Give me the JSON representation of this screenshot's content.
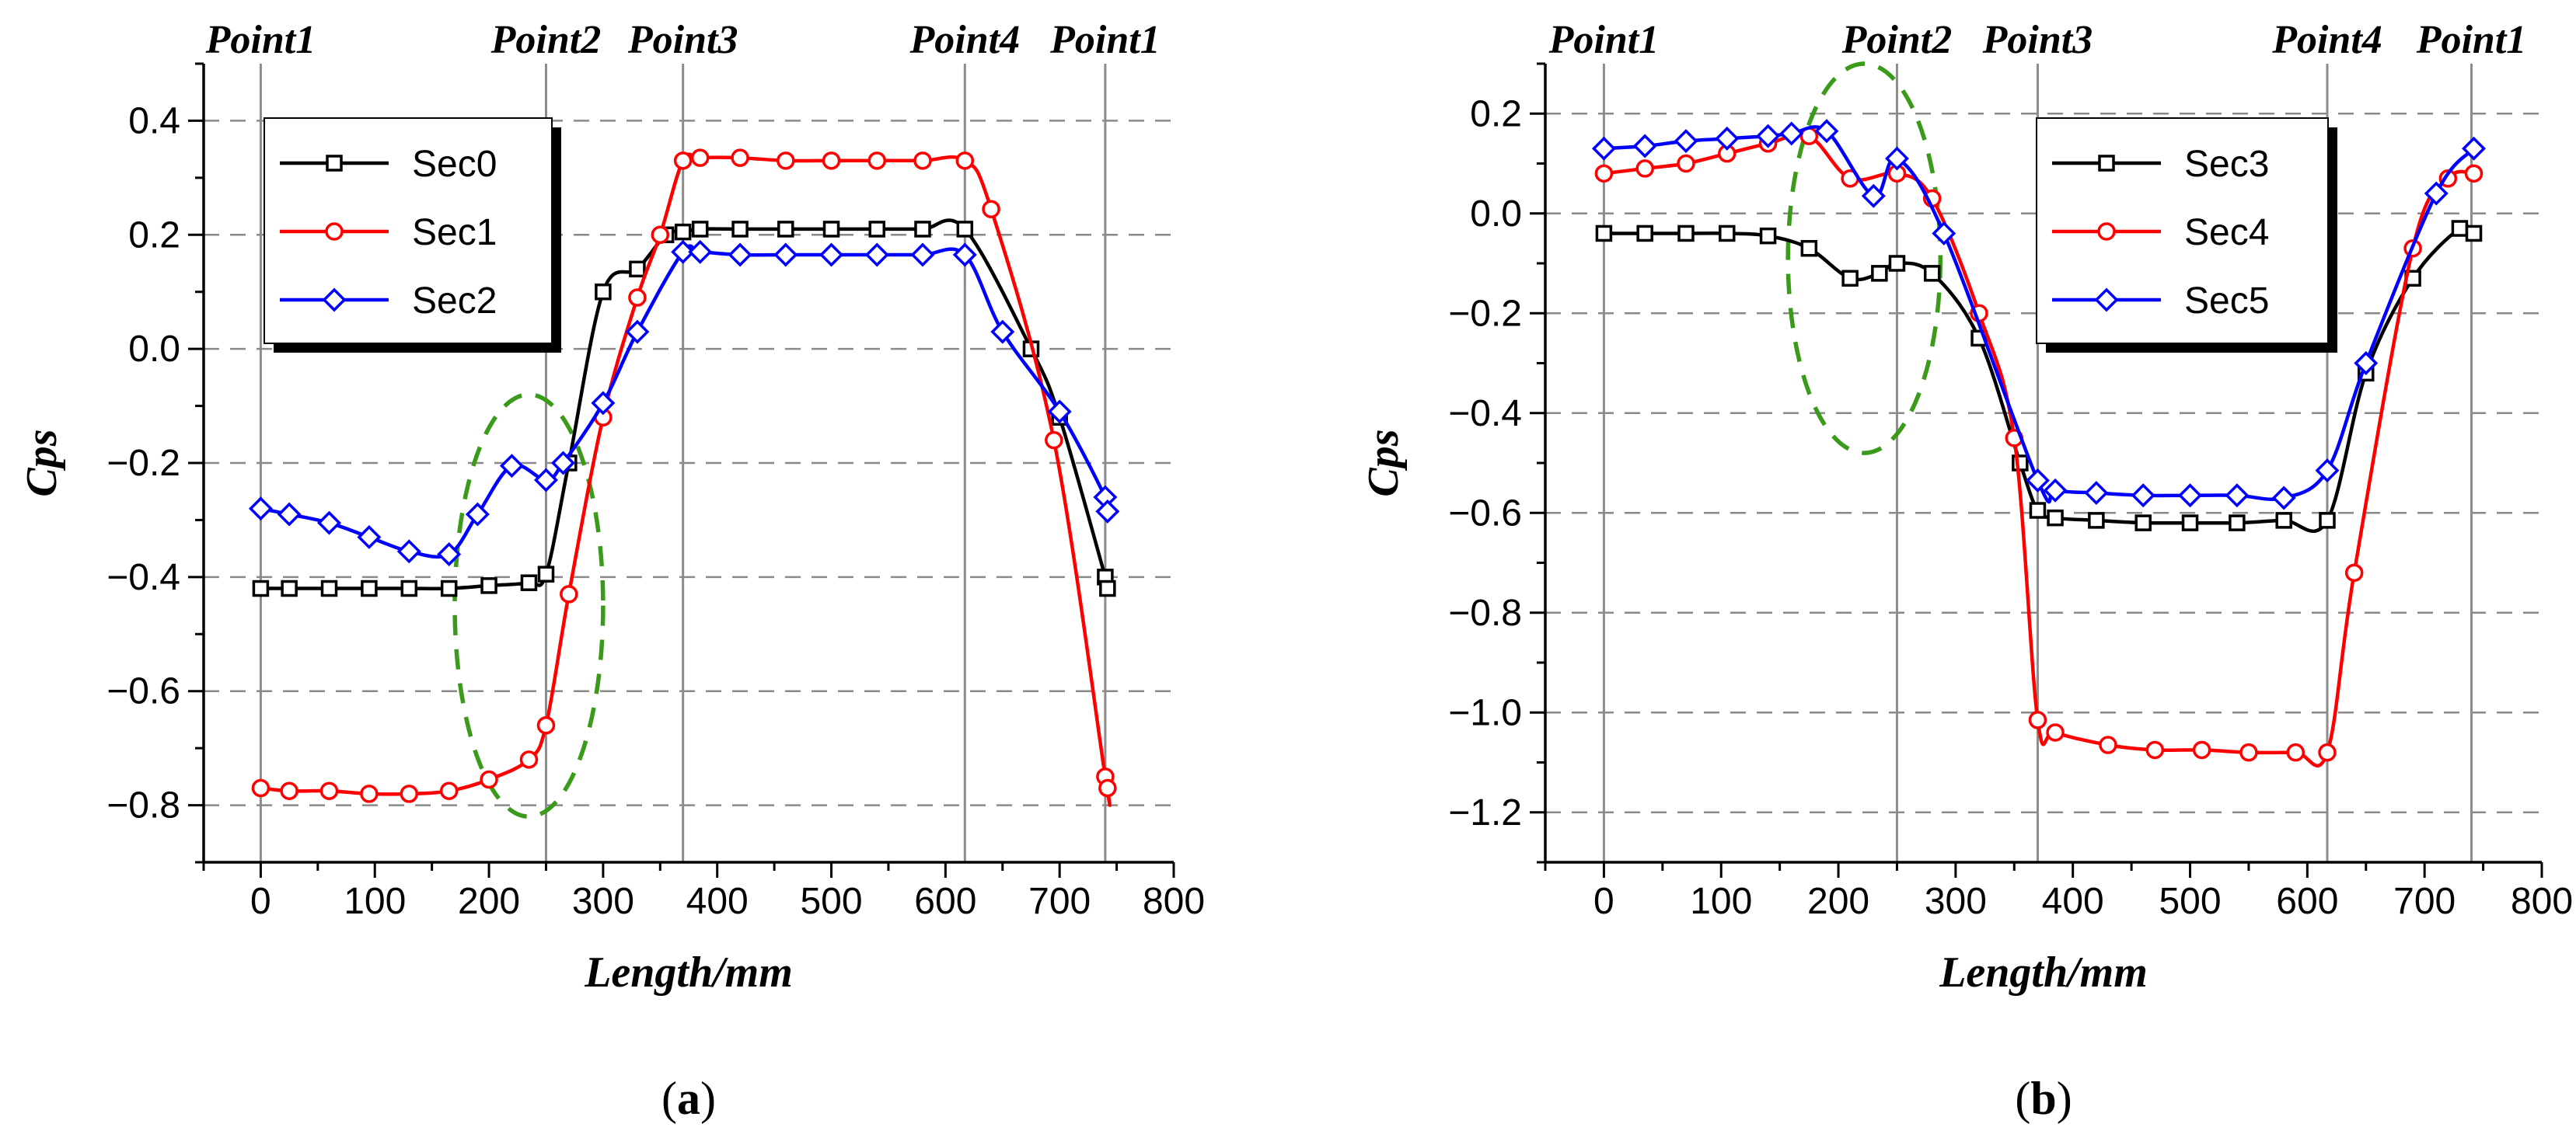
{
  "chart_data": [
    {
      "type": "line",
      "panel_label": "a",
      "xlabel": "Length/mm",
      "ylabel": "Cps",
      "xlim": [
        -50,
        800
      ],
      "ylim": [
        -0.9,
        0.5
      ],
      "x_ticks": [
        0,
        100,
        200,
        300,
        400,
        500,
        600,
        700,
        800
      ],
      "x_tick_labels": [
        "0",
        "100",
        "200",
        "300",
        "400",
        "500",
        "600",
        "700",
        "800"
      ],
      "y_ticks": [
        -0.8,
        -0.6,
        -0.4,
        -0.2,
        0.0,
        0.2,
        0.4
      ],
      "y_tick_labels": [
        "−0.8",
        "−0.6",
        "−0.4",
        "−0.2",
        "0.0",
        "0.2",
        "0.4"
      ],
      "grid": "horizontal dashed",
      "legend_position": "top-left",
      "points": [
        {
          "label": "Point1",
          "x": 0
        },
        {
          "label": "Point2",
          "x": 250
        },
        {
          "label": "Point3",
          "x": 370
        },
        {
          "label": "Point4",
          "x": 617
        },
        {
          "label": "Point1",
          "x": 740
        }
      ],
      "annotations": [
        {
          "type": "dashed-ellipse",
          "center_x": 235,
          "center_y": -0.45,
          "x_radius": 65,
          "y_radius": 0.37,
          "color": "#3a9a1a"
        }
      ],
      "series": [
        {
          "name": "Sec0",
          "color": "#000000",
          "marker": "square",
          "x": [
            0,
            25,
            60,
            95,
            130,
            165,
            200,
            235,
            250,
            270,
            300,
            330,
            355,
            370,
            385,
            420,
            460,
            500,
            540,
            580,
            617,
            675,
            700,
            740,
            742
          ],
          "y": [
            -0.42,
            -0.42,
            -0.42,
            -0.42,
            -0.42,
            -0.42,
            -0.415,
            -0.41,
            -0.395,
            -0.2,
            0.1,
            0.14,
            0.2,
            0.205,
            0.21,
            0.21,
            0.21,
            0.21,
            0.21,
            0.21,
            0.21,
            0.0,
            -0.12,
            -0.4,
            -0.42
          ]
        },
        {
          "name": "Sec1",
          "color": "#ff0000",
          "marker": "circle",
          "x": [
            0,
            25,
            60,
            95,
            130,
            165,
            200,
            235,
            250,
            270,
            300,
            330,
            350,
            370,
            385,
            420,
            460,
            500,
            540,
            580,
            617,
            640,
            695,
            740,
            742
          ],
          "y": [
            -0.77,
            -0.775,
            -0.775,
            -0.78,
            -0.78,
            -0.775,
            -0.755,
            -0.72,
            -0.66,
            -0.43,
            -0.12,
            0.09,
            0.2,
            0.33,
            0.335,
            0.335,
            0.33,
            0.33,
            0.33,
            0.33,
            0.33,
            0.245,
            -0.16,
            -0.75,
            -0.77
          ]
        },
        {
          "name": "Sec2",
          "color": "#0000ff",
          "marker": "diamond",
          "x": [
            0,
            25,
            60,
            95,
            130,
            165,
            190,
            220,
            250,
            265,
            300,
            330,
            370,
            385,
            420,
            460,
            500,
            540,
            580,
            617,
            650,
            700,
            740,
            742
          ],
          "y": [
            -0.28,
            -0.29,
            -0.305,
            -0.33,
            -0.355,
            -0.36,
            -0.29,
            -0.205,
            -0.23,
            -0.2,
            -0.095,
            0.03,
            0.17,
            0.17,
            0.165,
            0.165,
            0.165,
            0.165,
            0.165,
            0.165,
            0.03,
            -0.11,
            -0.26,
            -0.285
          ]
        }
      ]
    },
    {
      "type": "line",
      "panel_label": "b",
      "xlabel": "Length/mm",
      "ylabel": "Cps",
      "xlim": [
        -50,
        800
      ],
      "ylim": [
        -1.3,
        0.3
      ],
      "x_ticks": [
        0,
        100,
        200,
        300,
        400,
        500,
        600,
        700,
        800
      ],
      "x_tick_labels": [
        "0",
        "100",
        "200",
        "300",
        "400",
        "500",
        "600",
        "700",
        "800"
      ],
      "y_ticks": [
        -1.2,
        -1.0,
        -0.8,
        -0.6,
        -0.4,
        -0.2,
        0.0,
        0.2
      ],
      "y_tick_labels": [
        "−1.2",
        "−1.0",
        "−0.8",
        "−0.6",
        "−0.4",
        "−0.2",
        "0.0",
        "0.2"
      ],
      "grid": "horizontal dashed",
      "legend_position": "top-right",
      "points": [
        {
          "label": "Point1",
          "x": 0
        },
        {
          "label": "Point2",
          "x": 250
        },
        {
          "label": "Point3",
          "x": 370
        },
        {
          "label": "Point4",
          "x": 617
        },
        {
          "label": "Point1",
          "x": 740
        }
      ],
      "annotations": [
        {
          "type": "dashed-ellipse",
          "center_x": 222,
          "center_y": -0.09,
          "x_radius": 65,
          "y_radius": 0.39,
          "color": "#3a9a1a"
        }
      ],
      "series": [
        {
          "name": "Sec3",
          "color": "#000000",
          "marker": "square",
          "x": [
            0,
            35,
            70,
            105,
            140,
            175,
            210,
            235,
            250,
            280,
            320,
            355,
            370,
            385,
            420,
            460,
            500,
            540,
            580,
            617,
            650,
            690,
            730,
            742
          ],
          "y": [
            -0.04,
            -0.04,
            -0.04,
            -0.04,
            -0.045,
            -0.07,
            -0.13,
            -0.12,
            -0.1,
            -0.12,
            -0.25,
            -0.5,
            -0.595,
            -0.61,
            -0.615,
            -0.62,
            -0.62,
            -0.62,
            -0.615,
            -0.615,
            -0.32,
            -0.13,
            -0.03,
            -0.04
          ]
        },
        {
          "name": "Sec4",
          "color": "#ff0000",
          "marker": "circle",
          "x": [
            0,
            35,
            70,
            105,
            140,
            175,
            210,
            250,
            280,
            320,
            350,
            370,
            385,
            430,
            470,
            510,
            550,
            590,
            617,
            640,
            690,
            720,
            742
          ],
          "y": [
            0.08,
            0.09,
            0.1,
            0.12,
            0.14,
            0.155,
            0.07,
            0.08,
            0.03,
            -0.2,
            -0.45,
            -1.015,
            -1.04,
            -1.065,
            -1.075,
            -1.075,
            -1.08,
            -1.08,
            -1.08,
            -0.72,
            -0.07,
            0.07,
            0.08
          ]
        },
        {
          "name": "Sec5",
          "color": "#0000ff",
          "marker": "diamond",
          "x": [
            0,
            35,
            70,
            105,
            140,
            160,
            190,
            230,
            250,
            290,
            370,
            385,
            420,
            460,
            500,
            540,
            580,
            617,
            650,
            710,
            742
          ],
          "y": [
            0.13,
            0.135,
            0.145,
            0.15,
            0.155,
            0.16,
            0.165,
            0.035,
            0.11,
            -0.04,
            -0.535,
            -0.555,
            -0.56,
            -0.565,
            -0.565,
            -0.565,
            -0.57,
            -0.515,
            -0.3,
            0.04,
            0.13
          ]
        }
      ]
    }
  ]
}
